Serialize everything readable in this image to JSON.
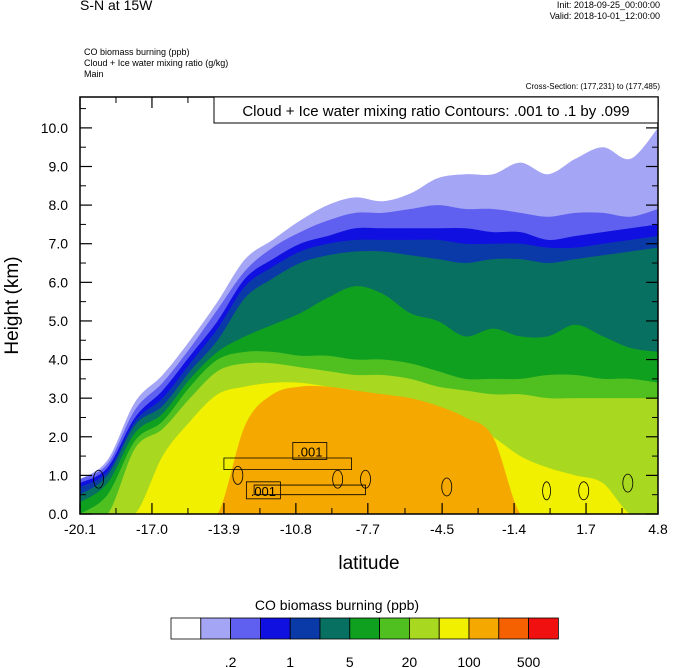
{
  "header": {
    "title": "S-N at 15W",
    "init": "Init: 2018-09-25_00:00:00",
    "valid": "Valid: 2018-10-01_12:00:00",
    "field1": "CO biomass burning   (ppb)",
    "field2": "Cloud + Ice water mixing ratio   (g/kg)",
    "field3": "Main",
    "cross_section": "Cross-Section: (177,231) to (177,485)"
  },
  "chart_data": {
    "type": "heatmap",
    "title": "",
    "contour_label": "Cloud + Ice water mixing ratio Contours: .001 to .1 by .099",
    "xlabel": "latitude",
    "ylabel": "Height (km)",
    "xlim": [
      -20.1,
      4.8
    ],
    "ylim": [
      0.0,
      10.8
    ],
    "x_ticks": [
      "-20.1",
      "-17.0",
      "-13.9",
      "-10.8",
      "-7.7",
      "-4.5",
      "-1.4",
      "1.7",
      "4.8"
    ],
    "y_ticks": [
      "0.0",
      "1.0",
      "2.0",
      "3.0",
      "4.0",
      "5.0",
      "6.0",
      "7.0",
      "8.0",
      "9.0",
      "10.0"
    ],
    "contour_value_labels": [
      ".001",
      ".001"
    ],
    "colorbar": {
      "title": "CO biomass burning  (ppb)",
      "colors": [
        "#ffffff",
        "#a5a5f5",
        "#6060f0",
        "#1010e0",
        "#0a3aa8",
        "#087060",
        "#10a020",
        "#50c020",
        "#a8d820",
        "#f0f000",
        "#f5a800",
        "#f56000",
        "#f01010"
      ],
      "labels": [
        ".2",
        "1",
        "5",
        "20",
        "100",
        "500"
      ]
    },
    "layers": [
      {
        "color": "#a5a5f5",
        "top_km": [
          0.9,
          1.4,
          2.9,
          3.6,
          4.5,
          5.5,
          6.6,
          7.1,
          7.6,
          8.0,
          8.2,
          8.1,
          8.3,
          8.7,
          8.8,
          8.8,
          9.1,
          8.8,
          9.2,
          9.5,
          9.2,
          10.0
        ]
      },
      {
        "color": "#6060f0",
        "top_km": [
          0.9,
          1.3,
          2.7,
          3.4,
          4.3,
          5.3,
          6.3,
          6.9,
          7.3,
          7.6,
          7.8,
          7.8,
          7.9,
          8.0,
          7.9,
          7.9,
          7.8,
          7.7,
          7.8,
          7.8,
          7.7,
          7.9
        ]
      },
      {
        "color": "#1010e0",
        "top_km": [
          0.8,
          1.2,
          2.5,
          3.2,
          4.1,
          5.0,
          6.1,
          6.6,
          7.0,
          7.2,
          7.4,
          7.4,
          7.4,
          7.4,
          7.4,
          7.3,
          7.3,
          7.1,
          7.2,
          7.3,
          7.4,
          7.5
        ]
      },
      {
        "color": "#0a3aa8",
        "top_km": [
          0.7,
          1.1,
          2.4,
          3.0,
          3.9,
          4.8,
          5.9,
          6.4,
          6.8,
          7.0,
          7.1,
          7.1,
          7.1,
          7.1,
          7.0,
          7.0,
          7.0,
          6.9,
          6.9,
          7.0,
          7.1,
          7.2
        ]
      },
      {
        "color": "#087060",
        "top_km": [
          0.5,
          1.0,
          2.3,
          2.8,
          3.7,
          4.5,
          5.6,
          6.1,
          6.5,
          6.7,
          6.8,
          6.8,
          6.7,
          6.6,
          6.5,
          6.6,
          6.6,
          6.5,
          6.6,
          6.7,
          6.8,
          6.9
        ]
      },
      {
        "color": "#10a020",
        "top_km": [
          0.3,
          0.8,
          2.1,
          2.6,
          3.5,
          4.2,
          4.6,
          4.9,
          5.2,
          5.6,
          5.9,
          5.7,
          5.2,
          5.0,
          4.6,
          4.8,
          4.6,
          4.6,
          4.9,
          4.6,
          4.3,
          4.2
        ]
      },
      {
        "color": "#50c020",
        "top_km": [
          0.0,
          0.5,
          1.9,
          2.4,
          3.3,
          4.0,
          4.2,
          4.2,
          4.1,
          4.1,
          4.0,
          4.0,
          3.9,
          3.7,
          3.5,
          3.5,
          3.5,
          3.6,
          3.6,
          3.5,
          3.5,
          3.4
        ]
      },
      {
        "color": "#a8d820",
        "top_km": [
          0.0,
          0.0,
          1.7,
          2.2,
          3.0,
          3.7,
          3.9,
          3.9,
          3.8,
          3.7,
          3.6,
          3.6,
          3.5,
          3.3,
          3.2,
          3.1,
          3.1,
          3.0,
          3.0,
          3.0,
          3.0,
          3.0
        ]
      },
      {
        "color": "#f0f000",
        "top_km": [
          0.0,
          0.0,
          0.0,
          1.5,
          2.4,
          3.1,
          3.3,
          3.4,
          3.4,
          3.3,
          3.2,
          3.0,
          2.8,
          2.6,
          2.4,
          2.0,
          1.5,
          1.2,
          1.0,
          0.8,
          0.0,
          0.0
        ]
      },
      {
        "color": "#f5a800",
        "top_km": [
          0.0,
          0.0,
          0.0,
          0.0,
          0.0,
          0.0,
          2.3,
          3.1,
          3.3,
          3.3,
          3.2,
          3.1,
          3.0,
          2.8,
          2.5,
          2.0,
          0.0,
          0.0,
          0.0,
          0.0,
          0.0,
          0.0
        ]
      }
    ]
  }
}
